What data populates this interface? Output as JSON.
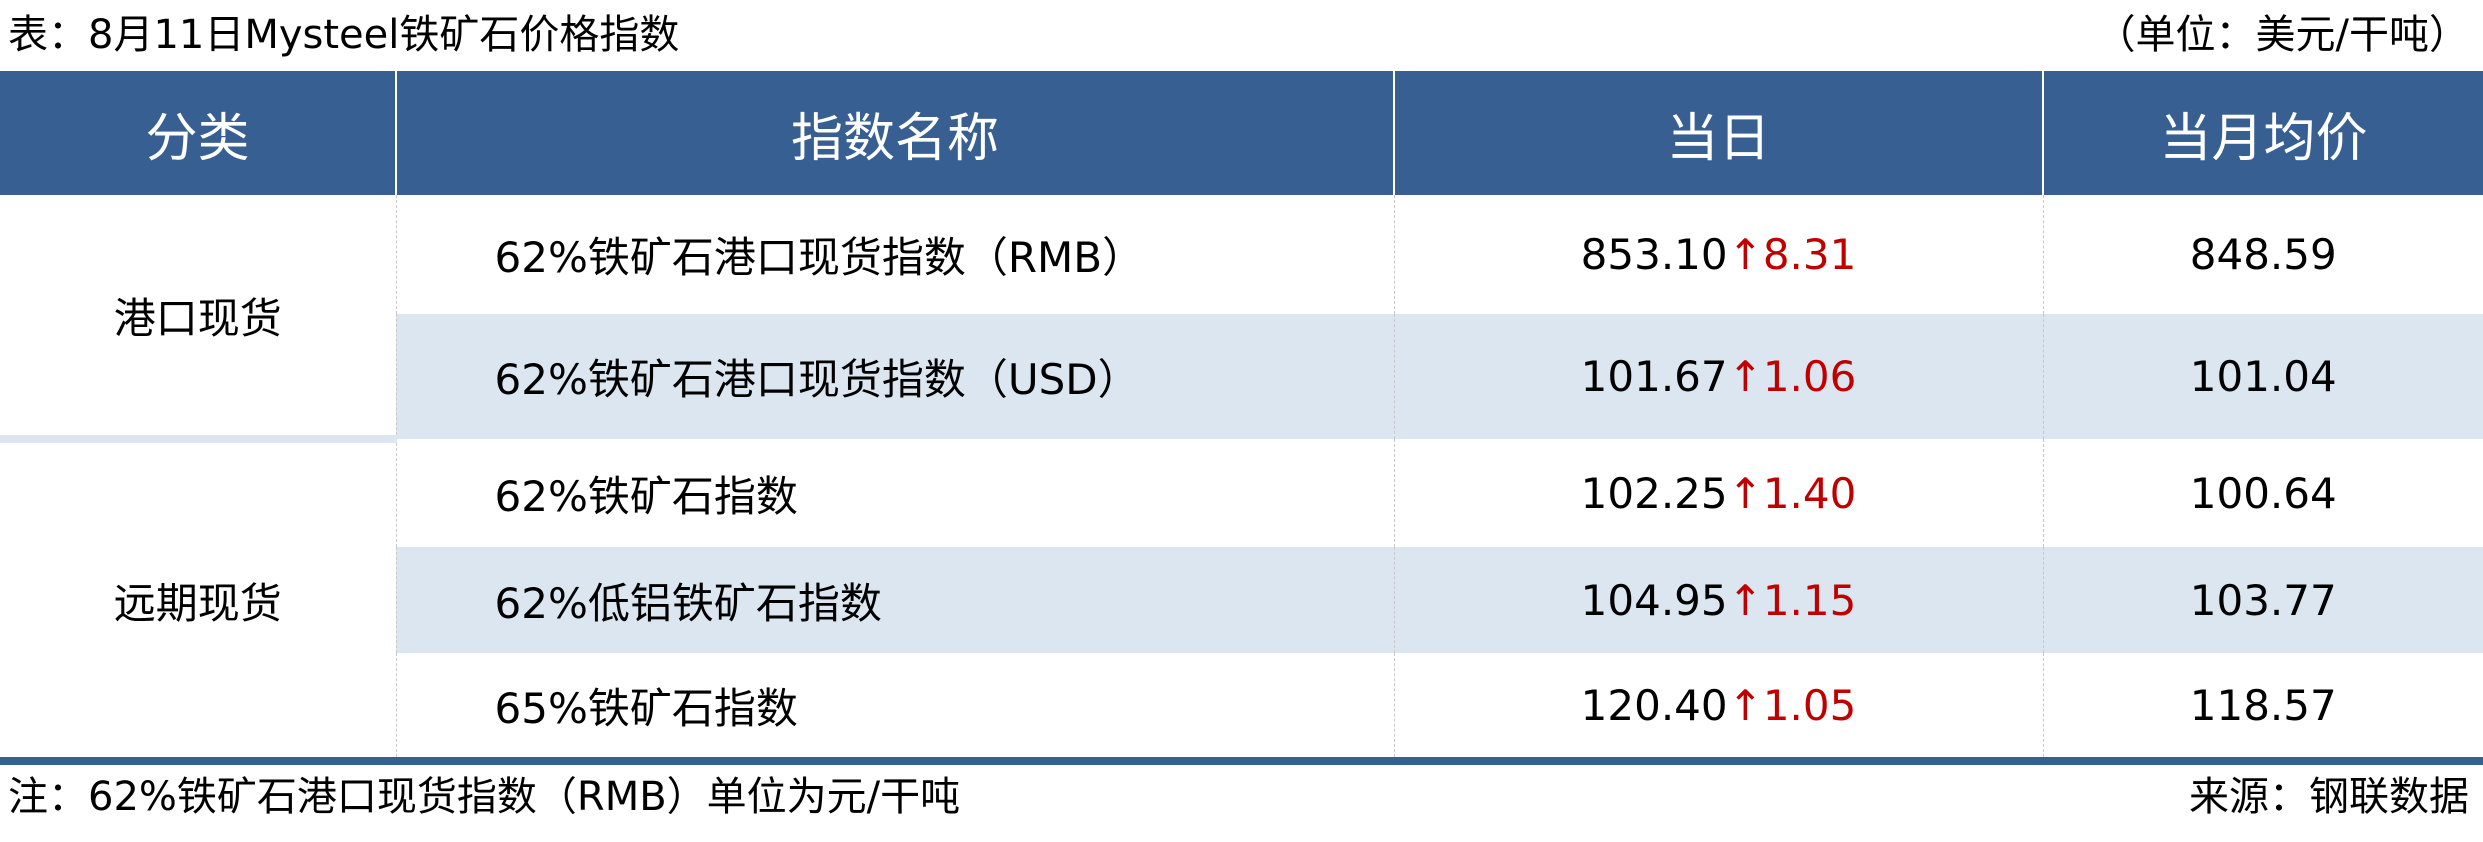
{
  "title": "表：8月11日Mysteel铁矿石价格指数",
  "unit": "（单位：美元/干吨）",
  "colors": {
    "header_bg": "#375f92",
    "alt_row_bg": "#dce6f1",
    "up_color": "#c00000"
  },
  "headers": [
    "分类",
    "指数名称",
    "当日",
    "当月均价"
  ],
  "groups": [
    {
      "category": "港口现货",
      "rows": [
        {
          "name": "62%铁矿石港口现货指数（RMB）",
          "today": "853.10",
          "arrow": "↑",
          "change": "8.31",
          "month_avg": "848.59"
        },
        {
          "name": "62%铁矿石港口现货指数（USD）",
          "today": "101.67",
          "arrow": "↑",
          "change": "1.06",
          "month_avg": "101.04"
        }
      ]
    },
    {
      "category": "远期现货",
      "rows": [
        {
          "name": "62%铁矿石指数",
          "today": "102.25",
          "arrow": "↑",
          "change": "1.40",
          "month_avg": "100.64"
        },
        {
          "name": "62%低铝铁矿石指数",
          "today": "104.95",
          "arrow": "↑",
          "change": "1.15",
          "month_avg": "103.77"
        },
        {
          "name": "65%铁矿石指数",
          "today": "120.40",
          "arrow": "↑",
          "change": "1.05",
          "month_avg": "118.57"
        }
      ]
    }
  ],
  "footer": {
    "note": "注：62%铁矿石港口现货指数（RMB）单位为元/干吨",
    "source": "来源：钢联数据"
  }
}
